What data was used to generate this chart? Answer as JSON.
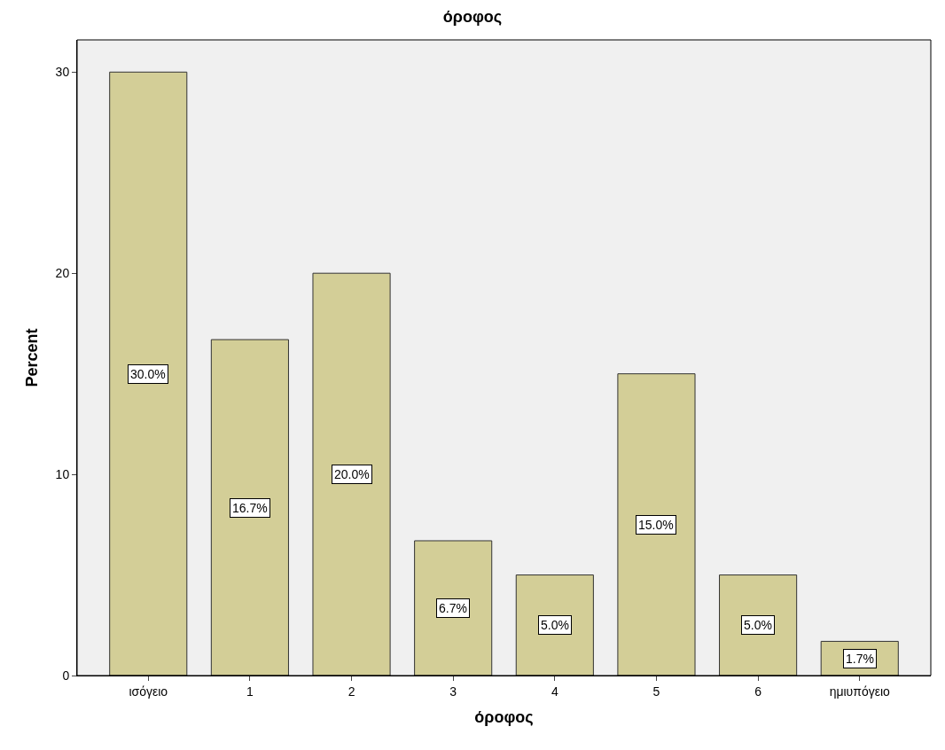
{
  "chart_data": {
    "type": "bar",
    "title": "όροφος",
    "xlabel": "όροφος",
    "ylabel": "Percent",
    "categories": [
      "ισόγειο",
      "1",
      "2",
      "3",
      "4",
      "5",
      "6",
      "ημιυπόγειο"
    ],
    "values": [
      30.0,
      16.7,
      20.0,
      6.7,
      5.0,
      15.0,
      5.0,
      1.7
    ],
    "value_labels": [
      "30.0%",
      "16.7%",
      "20.0%",
      "6.7%",
      "5.0%",
      "15.0%",
      "5.0%",
      "1.7%"
    ],
    "color": "#d3ce97",
    "ylim": [
      0,
      31.6
    ],
    "yticks": [
      0,
      10,
      20,
      30
    ],
    "grid": false,
    "legend": false
  }
}
